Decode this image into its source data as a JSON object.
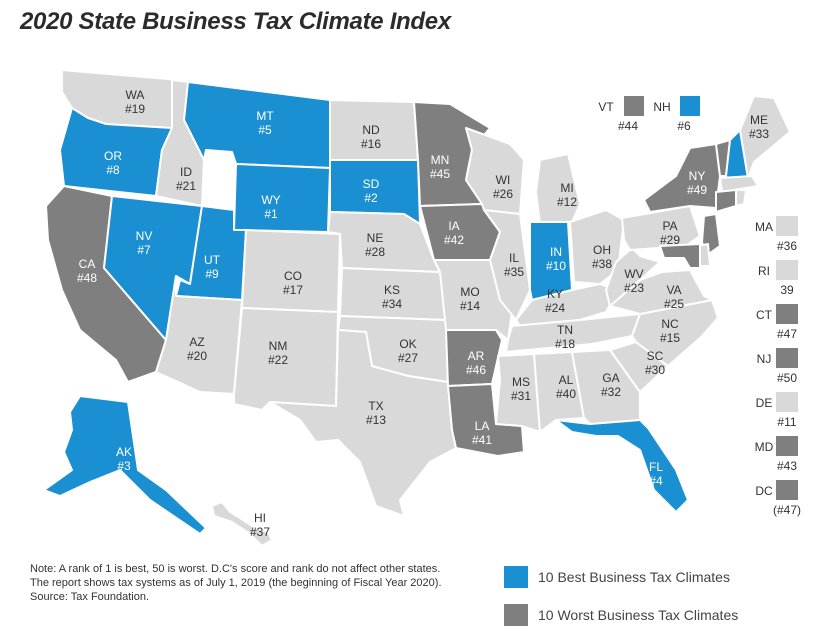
{
  "title": "2020 State Business Tax Climate Index",
  "colors": {
    "best": "#1a8fd1",
    "worst": "#7f7f7f",
    "other": "#d9d9d9",
    "text_dark": "#333333",
    "text_light": "#ffffff"
  },
  "states": {
    "WA": {
      "abbr": "WA",
      "rank": "#19",
      "group": "other"
    },
    "OR": {
      "abbr": "OR",
      "rank": "#8",
      "group": "best"
    },
    "CA": {
      "abbr": "CA",
      "rank": "#48",
      "group": "worst"
    },
    "ID": {
      "abbr": "ID",
      "rank": "#21",
      "group": "other"
    },
    "NV": {
      "abbr": "NV",
      "rank": "#7",
      "group": "best"
    },
    "MT": {
      "abbr": "MT",
      "rank": "#5",
      "group": "best"
    },
    "WY": {
      "abbr": "WY",
      "rank": "#1",
      "group": "best"
    },
    "UT": {
      "abbr": "UT",
      "rank": "#9",
      "group": "best"
    },
    "AZ": {
      "abbr": "AZ",
      "rank": "#20",
      "group": "other"
    },
    "CO": {
      "abbr": "CO",
      "rank": "#17",
      "group": "other"
    },
    "NM": {
      "abbr": "NM",
      "rank": "#22",
      "group": "other"
    },
    "ND": {
      "abbr": "ND",
      "rank": "#16",
      "group": "other"
    },
    "SD": {
      "abbr": "SD",
      "rank": "#2",
      "group": "best"
    },
    "NE": {
      "abbr": "NE",
      "rank": "#28",
      "group": "other"
    },
    "KS": {
      "abbr": "KS",
      "rank": "#34",
      "group": "other"
    },
    "OK": {
      "abbr": "OK",
      "rank": "#27",
      "group": "other"
    },
    "TX": {
      "abbr": "TX",
      "rank": "#13",
      "group": "other"
    },
    "MN": {
      "abbr": "MN",
      "rank": "#45",
      "group": "worst"
    },
    "IA": {
      "abbr": "IA",
      "rank": "#42",
      "group": "worst"
    },
    "MO": {
      "abbr": "MO",
      "rank": "#14",
      "group": "other"
    },
    "AR": {
      "abbr": "AR",
      "rank": "#46",
      "group": "worst"
    },
    "LA": {
      "abbr": "LA",
      "rank": "#41",
      "group": "worst"
    },
    "WI": {
      "abbr": "WI",
      "rank": "#26",
      "group": "other"
    },
    "IL": {
      "abbr": "IL",
      "rank": "#35",
      "group": "other"
    },
    "MI": {
      "abbr": "MI",
      "rank": "#12",
      "group": "other"
    },
    "IN": {
      "abbr": "IN",
      "rank": "#10",
      "group": "best"
    },
    "OH": {
      "abbr": "OH",
      "rank": "#38",
      "group": "other"
    },
    "KY": {
      "abbr": "KY",
      "rank": "#24",
      "group": "other"
    },
    "TN": {
      "abbr": "TN",
      "rank": "#18",
      "group": "other"
    },
    "MS": {
      "abbr": "MS",
      "rank": "#31",
      "group": "other"
    },
    "AL": {
      "abbr": "AL",
      "rank": "#40",
      "group": "other"
    },
    "GA": {
      "abbr": "GA",
      "rank": "#32",
      "group": "other"
    },
    "FL": {
      "abbr": "FL",
      "rank": "#4",
      "group": "best"
    },
    "SC": {
      "abbr": "SC",
      "rank": "#30",
      "group": "other"
    },
    "NC": {
      "abbr": "NC",
      "rank": "#15",
      "group": "other"
    },
    "VA": {
      "abbr": "VA",
      "rank": "#25",
      "group": "other"
    },
    "WV": {
      "abbr": "WV",
      "rank": "#23",
      "group": "other"
    },
    "PA": {
      "abbr": "PA",
      "rank": "#29",
      "group": "other"
    },
    "NY": {
      "abbr": "NY",
      "rank": "#49",
      "group": "worst"
    },
    "ME": {
      "abbr": "ME",
      "rank": "#33",
      "group": "other"
    },
    "AK": {
      "abbr": "AK",
      "rank": "#3",
      "group": "best"
    },
    "HI": {
      "abbr": "HI",
      "rank": "#37",
      "group": "other"
    }
  },
  "callouts_top": [
    {
      "abbr": "VT",
      "rank": "#44",
      "group": "worst"
    },
    {
      "abbr": "NH",
      "rank": "#6",
      "group": "best"
    }
  ],
  "callouts_side": [
    {
      "abbr": "MA",
      "rank": "#36",
      "group": "other"
    },
    {
      "abbr": "RI",
      "rank": "39",
      "group": "other"
    },
    {
      "abbr": "CT",
      "rank": "#47",
      "group": "worst"
    },
    {
      "abbr": "NJ",
      "rank": "#50",
      "group": "worst"
    },
    {
      "abbr": "DE",
      "rank": "#11",
      "group": "other"
    },
    {
      "abbr": "MD",
      "rank": "#43",
      "group": "worst"
    },
    {
      "abbr": "DC",
      "rank": "(#47)",
      "group": "worst"
    }
  ],
  "note": {
    "line1": "Note: A rank of 1 is best, 50 is worst. D.C's score and rank do not affect other states.",
    "line2": "The report shows tax systems as of July 1, 2019 (the beginning of Fiscal Year 2020).",
    "line3": "Source: Tax Foundation."
  },
  "legend": {
    "best": "10 Best Business Tax Climates",
    "worst": "10 Worst Business Tax Climates"
  }
}
